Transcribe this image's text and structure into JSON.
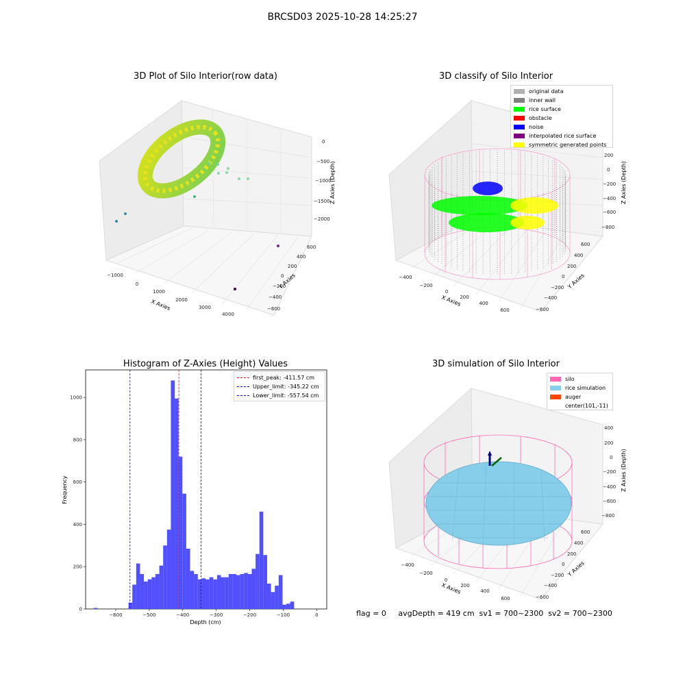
{
  "suptitle": "BRCSD03 2025-10-28 14:25:27",
  "status_line": "flag = 0     avgDepth = 419 cm  sv1 = 700~2300  sv2 = 700~2300",
  "chart_data": [
    {
      "type": "scatter",
      "title": "3D Plot of Silo Interior(row data)",
      "xlabel": "X Axies",
      "ylabel": "Y Axies",
      "zlabel": "Z Axies (Depth)",
      "x_ticks": [
        "−1000",
        "0",
        "1000",
        "2000",
        "3000",
        "4000"
      ],
      "y_ticks": [
        "−600",
        "−400",
        "−200",
        "0",
        "200",
        "400",
        "600"
      ],
      "z_ticks": [
        "−2000",
        "−1500",
        "−1000",
        "−500",
        "0"
      ],
      "colormap": "viridis",
      "outlier_points": [
        {
          "x": -1000,
          "y": -600,
          "z": -1700
        },
        {
          "x": -900,
          "y": -500,
          "z": -1650
        },
        {
          "x": 3700,
          "y": 500,
          "z": -2000
        },
        {
          "x": 4000,
          "y": -400,
          "z": -2200
        }
      ]
    },
    {
      "type": "scatter",
      "title": "3D classify of Silo Interior",
      "xlabel": "X Axies",
      "ylabel": "Y Axies",
      "zlabel": "Z Axies (Depth)",
      "x_ticks": [
        "−400",
        "−200",
        "0",
        "200",
        "400",
        "600"
      ],
      "y_ticks": [
        "−600",
        "−400",
        "−200",
        "0",
        "200",
        "400",
        "600"
      ],
      "z_ticks": [
        "−800",
        "−600",
        "−400",
        "−200",
        "0",
        "200"
      ],
      "legend": [
        {
          "label": "original data",
          "color": "#b0b0b0"
        },
        {
          "label": "inner wall",
          "color": "#808080"
        },
        {
          "label": "rice surface",
          "color": "#00ff00"
        },
        {
          "label": "obstacle",
          "color": "#ff0000"
        },
        {
          "label": "noise",
          "color": "#0000ff"
        },
        {
          "label": "interpolated rice surface",
          "color": "#800080"
        },
        {
          "label": "symmetric generated points",
          "color": "#ffff00"
        }
      ]
    },
    {
      "type": "bar",
      "title": "Histogram of Z-Axies (Height) Values",
      "xlabel": "Depth (cm)",
      "ylabel": "Frequency",
      "xlim": [
        -690,
        30
      ],
      "ylim": [
        0,
        1130
      ],
      "x_ticks": [
        -600,
        -500,
        -400,
        -300,
        -200,
        -100,
        0
      ],
      "x_tick_labels": [
        "−600",
        "−500",
        "−400",
        "−300",
        "−200",
        "−100",
        "0"
      ],
      "y_ticks": [
        0,
        200,
        400,
        600,
        800,
        1000
      ],
      "bin_width": 11.5,
      "bar_color": "#5050ff",
      "bins": [
        {
          "x": -666,
          "v": 5
        },
        {
          "x": -562,
          "v": 30
        },
        {
          "x": -550.5,
          "v": 115
        },
        {
          "x": -539,
          "v": 215
        },
        {
          "x": -527.5,
          "v": 165
        },
        {
          "x": -516,
          "v": 130
        },
        {
          "x": -504.5,
          "v": 140
        },
        {
          "x": -493,
          "v": 150
        },
        {
          "x": -481.5,
          "v": 165
        },
        {
          "x": -470,
          "v": 205
        },
        {
          "x": -458.5,
          "v": 300
        },
        {
          "x": -447,
          "v": 375
        },
        {
          "x": -435.5,
          "v": 1080
        },
        {
          "x": -424,
          "v": 995
        },
        {
          "x": -412.5,
          "v": 720
        },
        {
          "x": -401,
          "v": 545
        },
        {
          "x": -389.5,
          "v": 285
        },
        {
          "x": -378,
          "v": 180
        },
        {
          "x": -366.5,
          "v": 165
        },
        {
          "x": -355,
          "v": 140
        },
        {
          "x": -343.5,
          "v": 145
        },
        {
          "x": -332,
          "v": 140
        },
        {
          "x": -320.5,
          "v": 150
        },
        {
          "x": -309,
          "v": 140
        },
        {
          "x": -297.5,
          "v": 160
        },
        {
          "x": -286,
          "v": 150
        },
        {
          "x": -274.5,
          "v": 150
        },
        {
          "x": -263,
          "v": 165
        },
        {
          "x": -251.5,
          "v": 165
        },
        {
          "x": -240,
          "v": 160
        },
        {
          "x": -228.5,
          "v": 165
        },
        {
          "x": -217,
          "v": 170
        },
        {
          "x": -205.5,
          "v": 165
        },
        {
          "x": -194,
          "v": 190
        },
        {
          "x": -182.5,
          "v": 260
        },
        {
          "x": -171,
          "v": 460
        },
        {
          "x": -159.5,
          "v": 255
        },
        {
          "x": -148,
          "v": 120
        },
        {
          "x": -136.5,
          "v": 80
        },
        {
          "x": -125,
          "v": 110
        },
        {
          "x": -113.5,
          "v": 160
        },
        {
          "x": -102,
          "v": 20
        },
        {
          "x": -90.5,
          "v": 25
        },
        {
          "x": -79,
          "v": 35
        }
      ],
      "vlines": [
        {
          "label": "first_peak: -411.57 cm",
          "x": -411.57,
          "color": "#ff0000"
        },
        {
          "label": "Upper_limit: -345.22 cm",
          "x": -345.22,
          "color": "#0000ff"
        },
        {
          "label": "Lower_limit: -557.54 cm",
          "x": -557.54,
          "color": "#0000ff"
        }
      ]
    },
    {
      "type": "scatter",
      "title": "3D simulation of Silo Interior",
      "xlabel": "X Axies",
      "ylabel": "Y Axies",
      "zlabel": "Z Axies (Depth)",
      "x_ticks": [
        "−400",
        "−200",
        "0",
        "200",
        "400",
        "600"
      ],
      "y_ticks": [
        "−600",
        "−400",
        "−200",
        "0",
        "200",
        "400",
        "600"
      ],
      "z_ticks": [
        "−800",
        "−600",
        "−400",
        "−200",
        "0",
        "200",
        "400"
      ],
      "legend": [
        {
          "label": "silo",
          "color": "#ff69b4"
        },
        {
          "label": "rice simulation",
          "color": "#87ceeb"
        },
        {
          "label": "auger",
          "color": "#ff4500"
        },
        {
          "label": "center(101,-11)",
          "color": ""
        }
      ]
    }
  ]
}
